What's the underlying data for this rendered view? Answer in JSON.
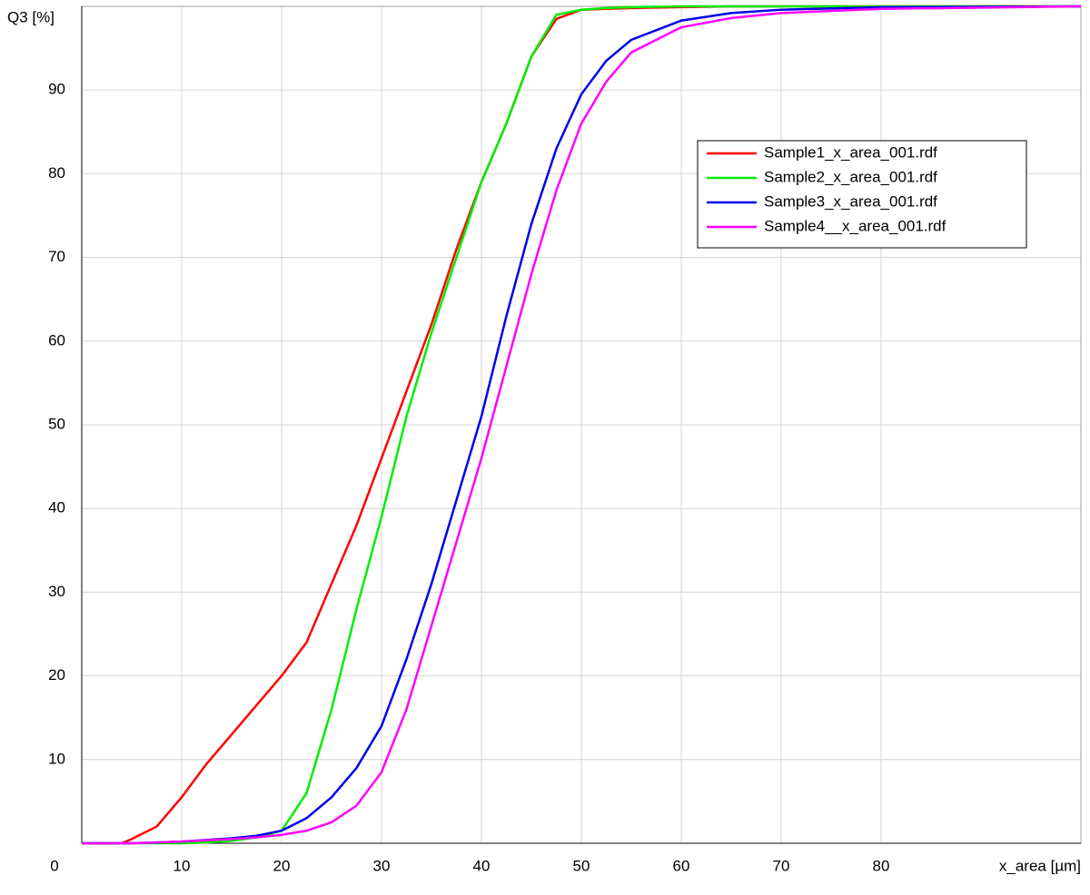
{
  "chart_data": {
    "type": "line",
    "ylabel": "Q3 [%]",
    "xlabel": "x_area [µm]",
    "x": [
      0,
      4,
      5,
      7.5,
      10,
      12.5,
      15,
      17.5,
      20,
      22.5,
      25,
      27.5,
      30,
      32.5,
      35,
      37.5,
      40,
      42.5,
      45,
      47.5,
      50,
      52.5,
      55,
      60,
      65,
      70,
      80,
      100
    ],
    "series": [
      {
        "name": "Sample1_x_area_001.rdf",
        "color": "#ff0000",
        "values": [
          0,
          0,
          0.5,
          2,
          5.5,
          9.5,
          13,
          16.5,
          20,
          24,
          31,
          38,
          46,
          54,
          62,
          71,
          79,
          86,
          94,
          98.5,
          99.6,
          99.7,
          99.8,
          99.9,
          100,
          100,
          100,
          100
        ]
      },
      {
        "name": "Sample2_x_area_001.rdf",
        "color": "#00ee00",
        "values": [
          0,
          0,
          0,
          0,
          0,
          0.1,
          0.3,
          0.7,
          1.5,
          6,
          16,
          28,
          39,
          51,
          61,
          70,
          79,
          86,
          94,
          99,
          99.6,
          99.8,
          99.9,
          100,
          100,
          100,
          100,
          100
        ]
      },
      {
        "name": "Sample3_x_area_001.rdf",
        "color": "#0000ee",
        "values": [
          0,
          0,
          0,
          0.1,
          0.2,
          0.4,
          0.6,
          0.9,
          1.5,
          3,
          5.5,
          9,
          14,
          22,
          31,
          41,
          51,
          63,
          74,
          83,
          89.5,
          93.5,
          96,
          98.3,
          99.2,
          99.6,
          99.9,
          100
        ]
      },
      {
        "name": "Sample4__x_area_001.rdf",
        "color": "#ff00ff",
        "values": [
          0,
          0,
          0,
          0.1,
          0.2,
          0.35,
          0.5,
          0.7,
          1,
          1.5,
          2.5,
          4.5,
          8.5,
          16,
          26,
          36,
          46,
          57,
          68,
          78,
          86,
          91,
          94.5,
          97.5,
          98.6,
          99.2,
          99.7,
          100
        ]
      }
    ],
    "xlim": [
      0,
      100
    ],
    "ylim": [
      0,
      100
    ],
    "xticks": [
      0,
      10,
      20,
      30,
      40,
      50,
      60,
      70,
      80
    ],
    "yticks": [
      10,
      20,
      30,
      40,
      50,
      60,
      70,
      80,
      90
    ],
    "grid": true,
    "legend": "upper right"
  }
}
